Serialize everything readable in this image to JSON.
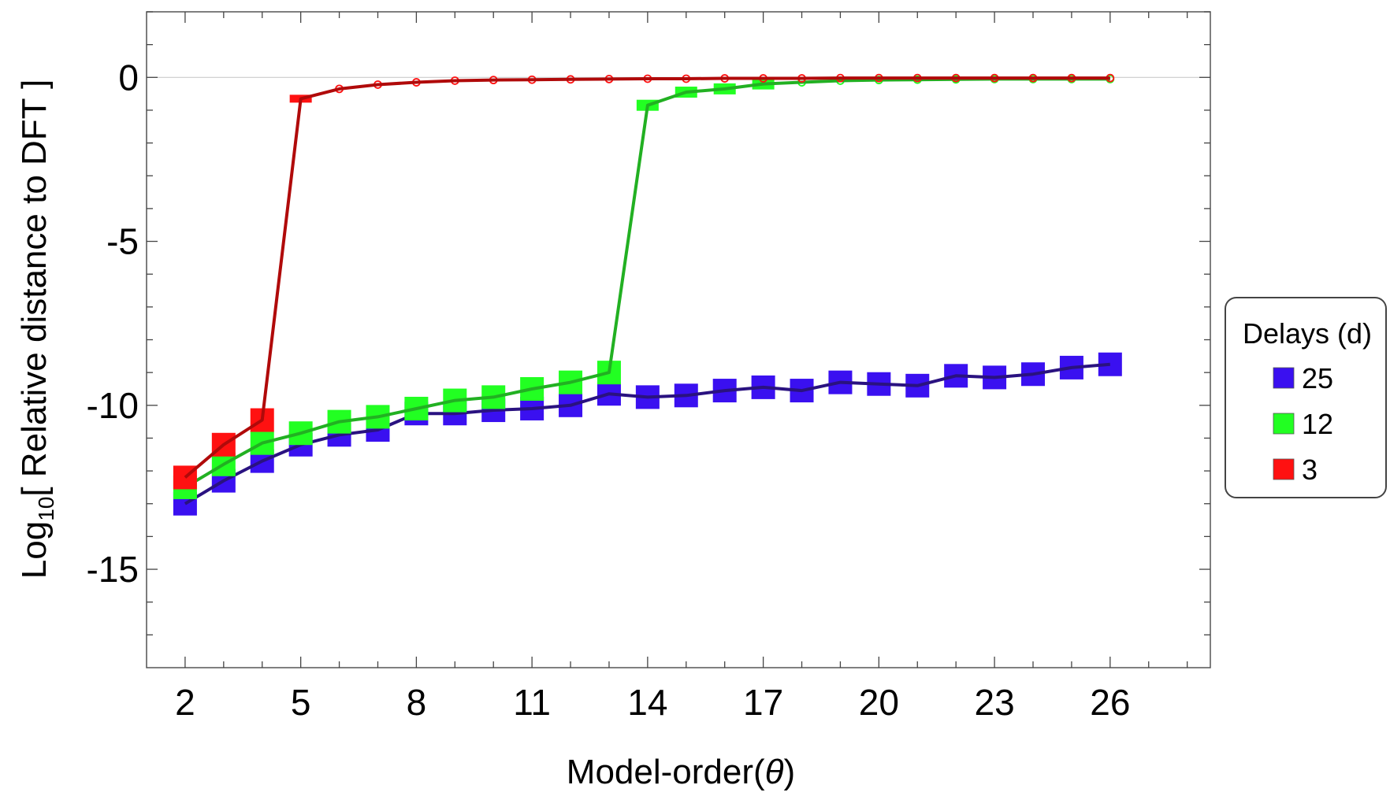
{
  "chart_data": {
    "type": "line",
    "xlabel_main": "Model-order(",
    "xlabel_symbol": "θ",
    "xlabel_close": ")",
    "ylabel_prefix": "Log",
    "ylabel_sub": "10",
    "ylabel_rest": "[ Relative distance to DFT ]",
    "xlim": [
      1,
      28.6
    ],
    "ylim": [
      -18,
      2
    ],
    "x_ticks": [
      2,
      5,
      8,
      11,
      14,
      17,
      20,
      23,
      26
    ],
    "y_ticks": [
      0,
      -5,
      -10,
      -15
    ],
    "y_tick_labels": [
      "0",
      "-5",
      "-10",
      "-15"
    ],
    "legend_title": "Delays (d)",
    "legend_placement": "right",
    "series": [
      {
        "name": "25",
        "color": "#3a10f0",
        "line_color": "#2a1280",
        "marker": "square",
        "x": [
          2,
          3,
          4,
          5,
          6,
          7,
          8,
          9,
          10,
          11,
          12,
          13,
          14,
          15,
          16,
          17,
          18,
          19,
          20,
          21,
          22,
          23,
          24,
          25,
          26
        ],
        "values": [
          -13.0,
          -12.3,
          -11.7,
          -11.2,
          -10.9,
          -10.75,
          -10.25,
          -10.25,
          -10.15,
          -10.1,
          -10.0,
          -9.65,
          -9.75,
          -9.7,
          -9.55,
          -9.45,
          -9.55,
          -9.3,
          -9.35,
          -9.4,
          -9.1,
          -9.15,
          -9.05,
          -8.85,
          -8.75
        ]
      },
      {
        "name": "12",
        "color": "#22ff22",
        "line_color": "#22b022",
        "marker": "square",
        "x": [
          2,
          3,
          4,
          5,
          6,
          7,
          8,
          9,
          10,
          11,
          12,
          13,
          14,
          15,
          16,
          17,
          18,
          19,
          20,
          21,
          22,
          23,
          24,
          25,
          26
        ],
        "values": [
          -12.5,
          -11.8,
          -11.15,
          -10.85,
          -10.5,
          -10.35,
          -10.1,
          -9.85,
          -9.75,
          -9.5,
          -9.3,
          -9.0,
          -0.85,
          -0.45,
          -0.35,
          -0.2,
          -0.15,
          -0.1,
          -0.08,
          -0.07,
          -0.06,
          -0.05,
          -0.05,
          -0.05,
          -0.05
        ]
      },
      {
        "name": "3",
        "color": "#ff1111",
        "line_color": "#b00a0a",
        "marker": "square",
        "x": [
          2,
          3,
          4,
          5,
          6,
          7,
          8,
          9,
          10,
          11,
          12,
          13,
          14,
          15,
          16,
          17,
          18,
          19,
          20,
          21,
          22,
          23,
          24,
          25,
          26
        ],
        "values": [
          -12.2,
          -11.2,
          -10.45,
          -0.65,
          -0.35,
          -0.22,
          -0.15,
          -0.1,
          -0.08,
          -0.07,
          -0.06,
          -0.05,
          -0.04,
          -0.04,
          -0.03,
          -0.03,
          -0.03,
          -0.02,
          -0.02,
          -0.02,
          -0.02,
          -0.02,
          -0.02,
          -0.02,
          -0.02
        ]
      }
    ]
  }
}
